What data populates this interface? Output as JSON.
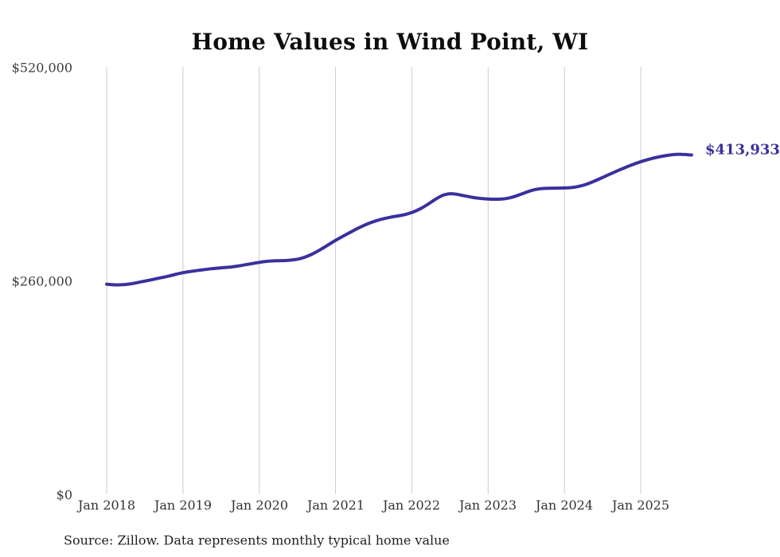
{
  "page": {
    "title": "Home Values in Wind Point, WI",
    "source_note": "Source: Zillow. Data represents monthly typical home value"
  },
  "chart_data": {
    "type": "line",
    "title": "Home Values in Wind Point, WI",
    "x_start": "2018-01",
    "x_end": "2025-09",
    "x_interval": "monthly",
    "series": [
      {
        "name": "Typical home value",
        "values": [
          257000,
          256200,
          256000,
          256600,
          257600,
          259100,
          260700,
          262300,
          263900,
          265500,
          267300,
          269200,
          271000,
          272200,
          273300,
          274300,
          275300,
          276200,
          276800,
          277400,
          278300,
          279400,
          280800,
          282200,
          283600,
          284600,
          285200,
          285500,
          285700,
          286200,
          287200,
          289200,
          292200,
          296200,
          300700,
          305500,
          310300,
          314500,
          318700,
          322800,
          326700,
          330200,
          333100,
          335500,
          337400,
          338900,
          340100,
          341700,
          344000,
          347200,
          351400,
          356400,
          361700,
          365600,
          367100,
          366400,
          364800,
          363200,
          361900,
          361000,
          360400,
          360100,
          360300,
          361200,
          363000,
          365800,
          368800,
          371300,
          372900,
          373500,
          373700,
          373700,
          373800,
          374200,
          375300,
          377200,
          379900,
          383200,
          386700,
          390200,
          393600,
          396900,
          400100,
          403100,
          405800,
          408200,
          410300,
          411900,
          413300,
          414400,
          414900,
          414600,
          413933
        ]
      }
    ],
    "x_tick_labels": [
      "Jan 2018",
      "Jan 2019",
      "Jan 2020",
      "Jan 2021",
      "Jan 2022",
      "Jan 2023",
      "Jan 2024",
      "Jan 2025"
    ],
    "x_tick_month_indices": [
      0,
      12,
      24,
      36,
      48,
      60,
      72,
      84
    ],
    "y_tick_labels": [
      "$0",
      "$260,000",
      "$520,000"
    ],
    "y_tick_values": [
      0,
      260000,
      520000
    ],
    "ylim": [
      0,
      520000
    ],
    "end_label": "$413,933",
    "end_value": 413933,
    "line_color": "#39319e",
    "gridline_color": "#cccccc",
    "grid": "vertical-only",
    "legend": "none"
  }
}
